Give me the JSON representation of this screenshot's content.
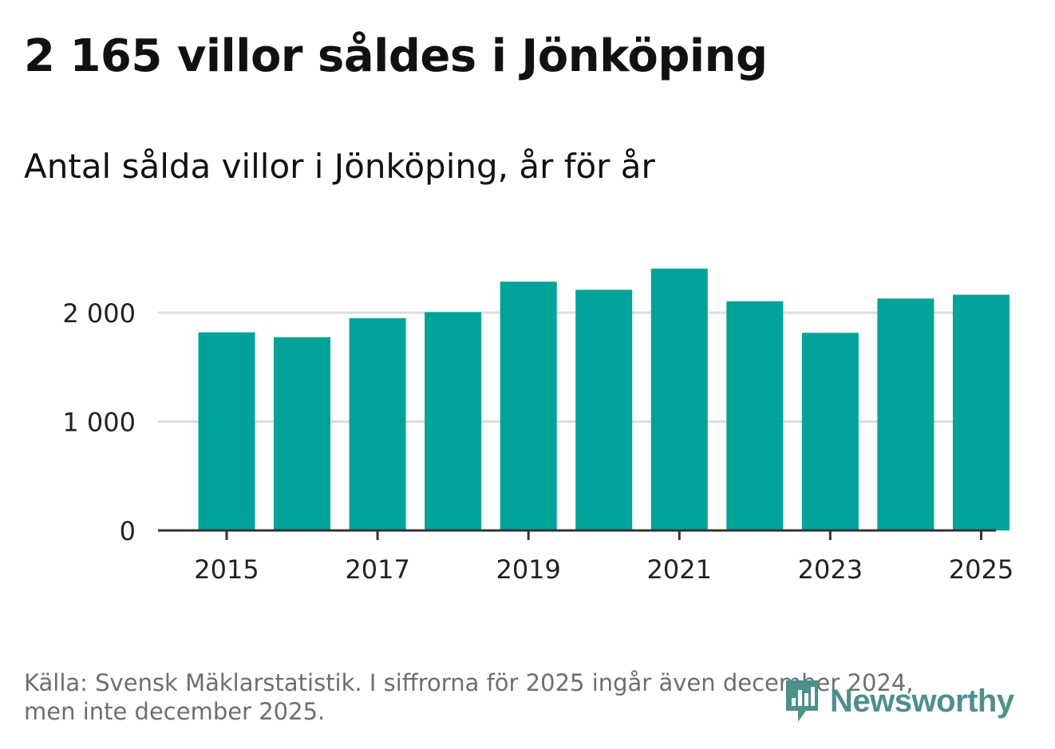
{
  "title": "2 165 villor såldes i Jönköping",
  "subtitle": "Antal sålda villor i Jönköping, år för år",
  "source_line1": "Källa: Svensk Mäklarstatistik. I siffrorna för 2025 ingår även december 2024,",
  "source_line2": "men inte december 2025.",
  "logo_text": "Newsworthy",
  "colors": {
    "bar": "#00a39a",
    "grid": "#dddddd",
    "axis": "#333333",
    "logo": "#4e8f8c"
  },
  "chart_data": {
    "type": "bar",
    "title": "Antal sålda villor i Jönköping, år för år",
    "categories": [
      "2015",
      "2016",
      "2017",
      "2018",
      "2019",
      "2020",
      "2021",
      "2022",
      "2023",
      "2024",
      "2025"
    ],
    "values": [
      1820,
      1775,
      1950,
      2005,
      2285,
      2210,
      2405,
      2105,
      1815,
      2130,
      2165
    ],
    "ylim": [
      0,
      2500
    ],
    "yticks": [
      0,
      1000,
      2000
    ],
    "ytick_labels": [
      "0",
      "1 000",
      "2 000"
    ],
    "xtick_labels": [
      "2015",
      "2017",
      "2019",
      "2021",
      "2023",
      "2025"
    ],
    "xlabel": "",
    "ylabel": "",
    "grid": true
  }
}
